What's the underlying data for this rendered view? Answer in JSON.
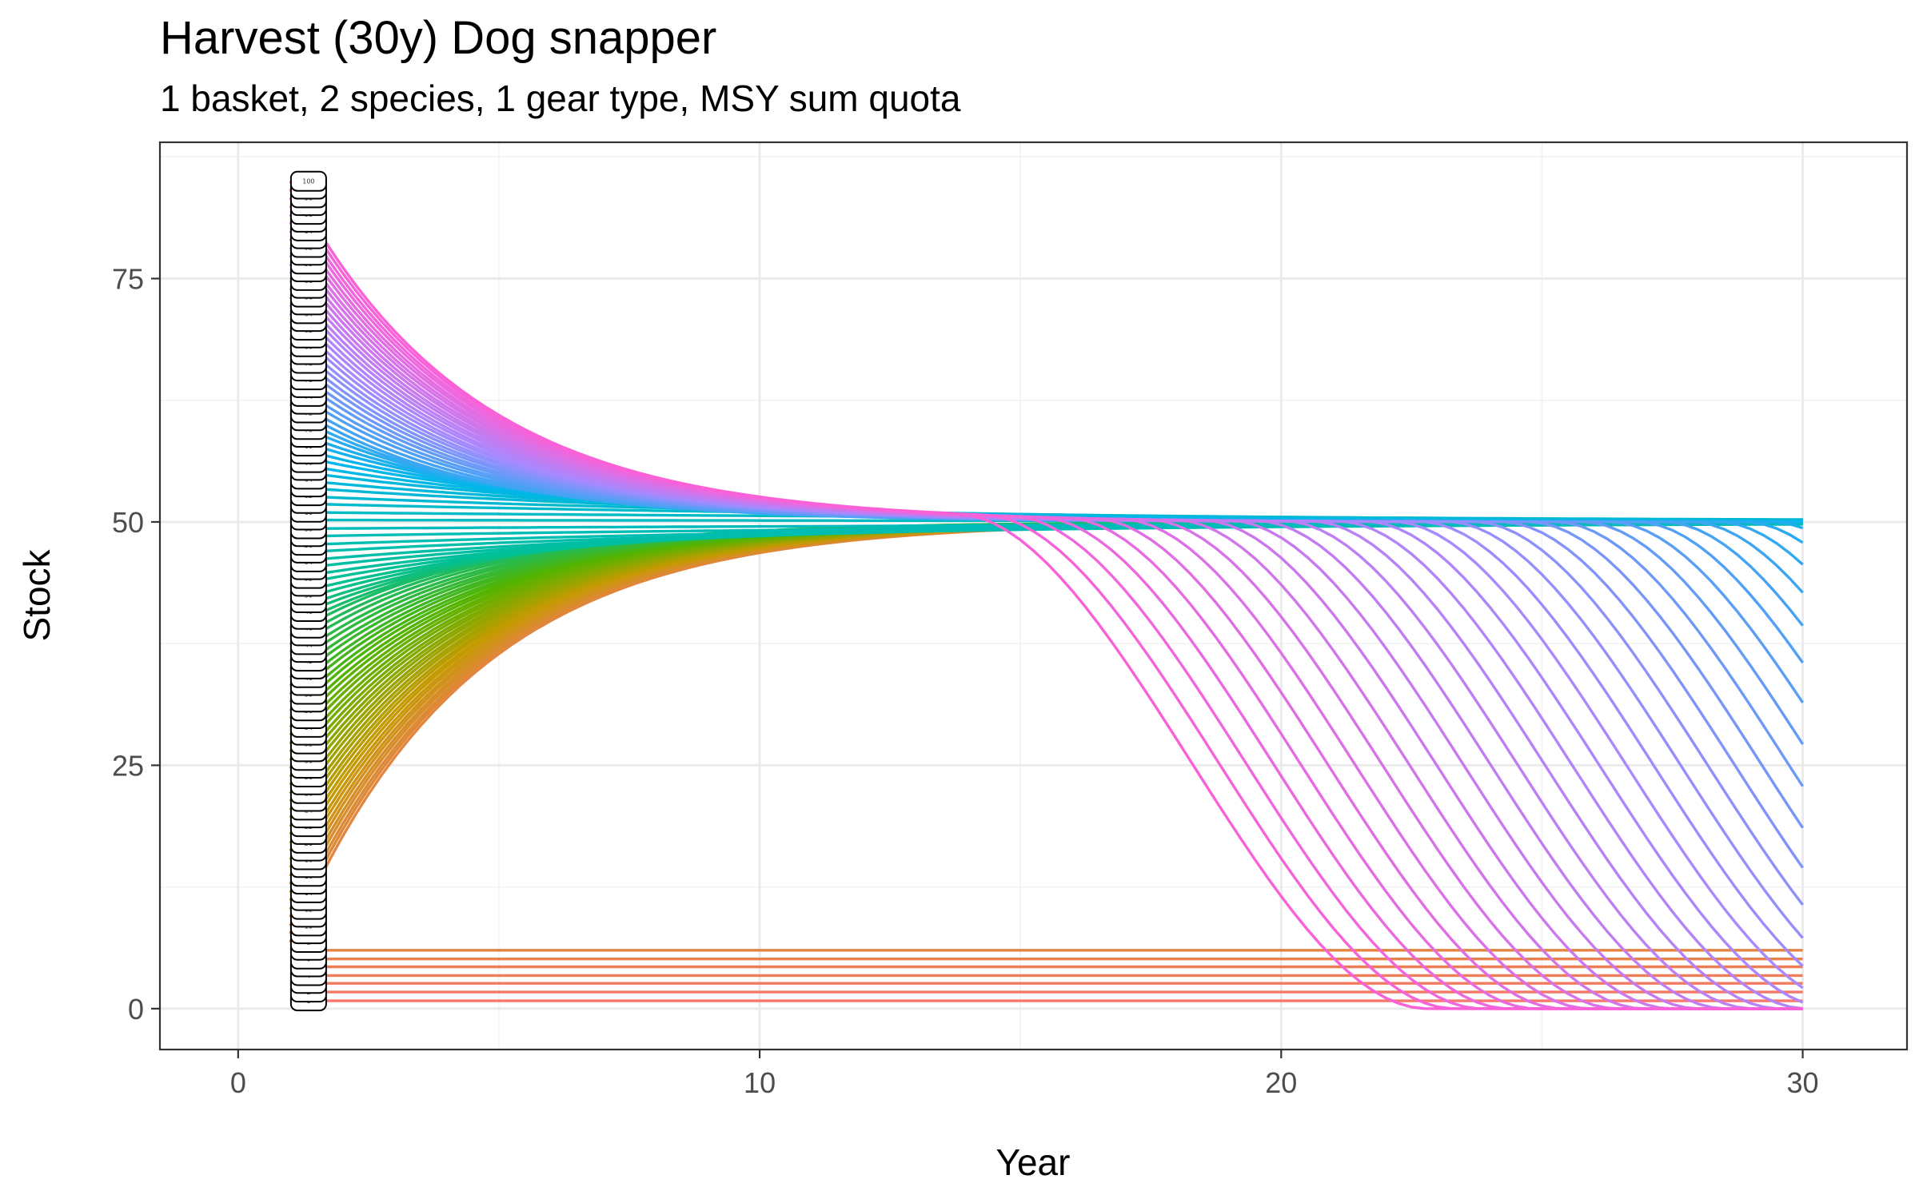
{
  "chart_data": {
    "type": "line",
    "title": "Harvest (30y) Dog snapper",
    "subtitle": "1 basket, 2 species, 1 gear type, MSY sum quota",
    "xlabel": "Year",
    "ylabel": "Stock",
    "xlim": [
      -1.5,
      32
    ],
    "ylim": [
      -4.2,
      89
    ],
    "x_ticks": [
      0,
      10,
      20,
      30
    ],
    "x_tick_labels": [
      "0",
      "10",
      "20",
      "30"
    ],
    "y_ticks": [
      0,
      25,
      50,
      75
    ],
    "y_tick_labels": [
      "0",
      "25",
      "50",
      "75"
    ],
    "grid": true,
    "legend": "none",
    "series_count": 100,
    "series_labels": [
      "1",
      "2",
      "3",
      "4",
      "5",
      "6",
      "7",
      "8",
      "9",
      "10",
      "11",
      "12",
      "13",
      "14",
      "15",
      "16",
      "17",
      "18",
      "19",
      "20",
      "21",
      "22",
      "23",
      "24",
      "25",
      "26",
      "27",
      "28",
      "29",
      "30",
      "31",
      "32",
      "33",
      "34",
      "35",
      "36",
      "37",
      "38",
      "39",
      "40",
      "41",
      "42",
      "43",
      "44",
      "45",
      "46",
      "47",
      "48",
      "49",
      "50",
      "51",
      "52",
      "53",
      "54",
      "55",
      "56",
      "57",
      "58",
      "59",
      "60",
      "61",
      "62",
      "63",
      "64",
      "65",
      "66",
      "67",
      "68",
      "69",
      "70",
      "71",
      "72",
      "73",
      "74",
      "75",
      "76",
      "77",
      "78",
      "79",
      "80",
      "81",
      "82",
      "83",
      "84",
      "85",
      "86",
      "87",
      "88",
      "89",
      "90",
      "91",
      "92",
      "93",
      "94",
      "95",
      "96",
      "97",
      "98",
      "99",
      "100"
    ],
    "series_start_year": 1,
    "series_end_year": 30,
    "series_start_stock": [
      0.8,
      1.7,
      2.6,
      3.4,
      4.3,
      5.1,
      6.0,
      6.8,
      7.7,
      8.5,
      9.4,
      10.2,
      11.1,
      11.9,
      12.8,
      13.6,
      14.5,
      15.3,
      16.2,
      17.0,
      17.9,
      18.7,
      19.6,
      20.4,
      21.3,
      22.1,
      23.0,
      23.8,
      24.7,
      25.5,
      26.4,
      27.2,
      28.1,
      28.9,
      29.8,
      30.6,
      31.5,
      32.3,
      33.2,
      34.0,
      34.9,
      35.7,
      36.6,
      37.4,
      38.3,
      39.1,
      40.0,
      40.8,
      41.7,
      42.5,
      43.4,
      44.2,
      45.1,
      45.9,
      46.8,
      47.6,
      48.5,
      49.3,
      50.2,
      51.0,
      51.9,
      52.7,
      53.6,
      54.4,
      55.3,
      56.1,
      57.0,
      57.8,
      58.7,
      59.5,
      60.4,
      61.2,
      62.1,
      62.9,
      63.8,
      64.6,
      65.5,
      66.3,
      67.2,
      68.0,
      68.9,
      69.7,
      70.6,
      71.4,
      72.3,
      73.1,
      74.0,
      74.8,
      75.7,
      76.5,
      77.4,
      78.2,
      79.1,
      79.9,
      80.8,
      81.6,
      82.5,
      83.3,
      84.2,
      85.0
    ],
    "equilibrium_stock": 50,
    "collapse": {
      "first_series": 59,
      "last_collapse_year": 22.8,
      "collapse_year_step": 0.52,
      "floor": 0
    },
    "label_column_x": 1.35,
    "colors": [
      "#f8766d",
      "#c49a00",
      "#53b400",
      "#00c094",
      "#00b6eb",
      "#a58aff",
      "#fb61d7"
    ]
  }
}
